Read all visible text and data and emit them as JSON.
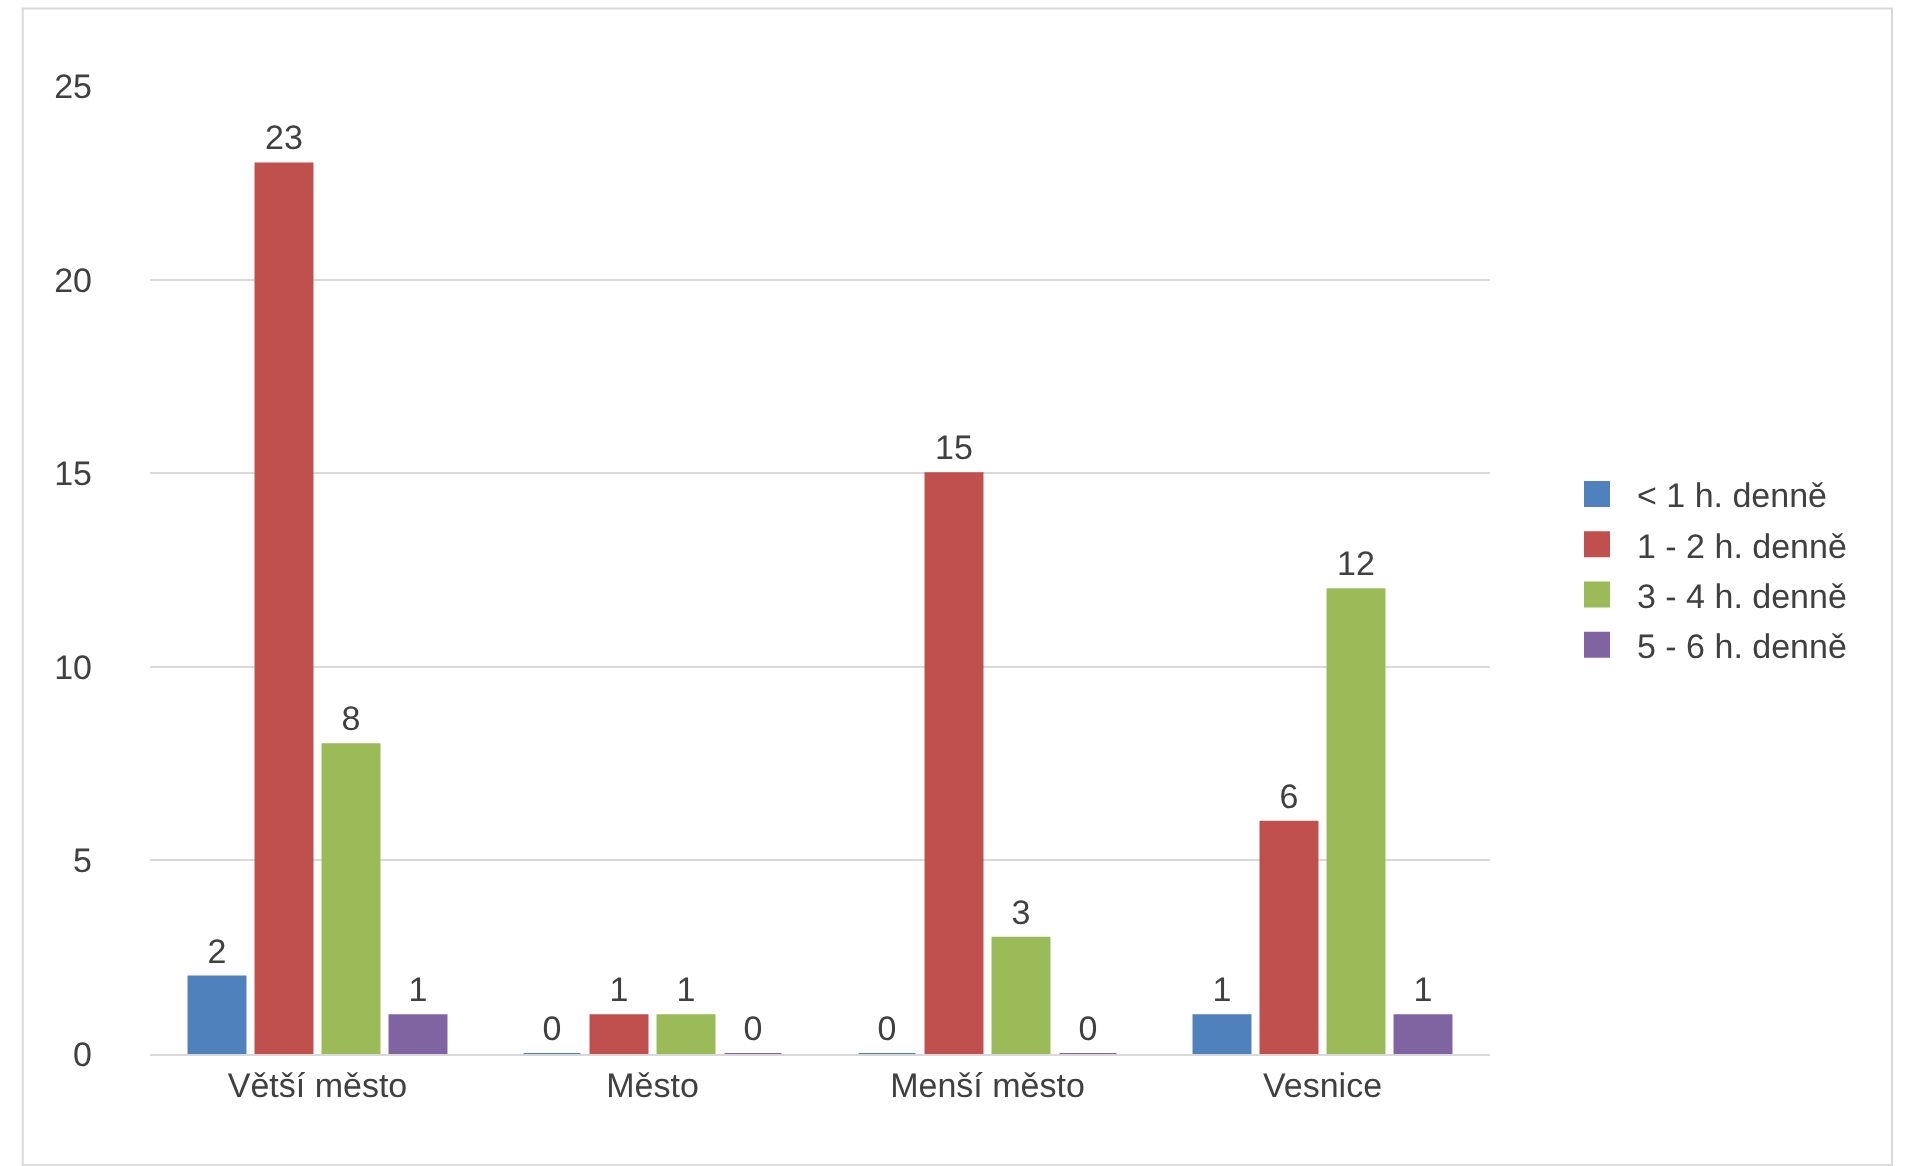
{
  "chart_data": {
    "type": "bar",
    "categories": [
      "Větší město",
      "Město",
      "Menší město",
      "Vesnice"
    ],
    "series": [
      {
        "name": "< 1 h. denně",
        "color": "#4f81bd",
        "values": [
          2,
          0,
          0,
          1
        ]
      },
      {
        "name": "1 - 2 h. denně",
        "color": "#c0504d",
        "values": [
          23,
          1,
          15,
          6
        ]
      },
      {
        "name": "3 - 4 h. denně",
        "color": "#9bbb59",
        "values": [
          8,
          1,
          3,
          12
        ]
      },
      {
        "name": "5 - 6 h. denně",
        "color": "#8064a2",
        "values": [
          1,
          0,
          0,
          1
        ]
      }
    ],
    "ylim": [
      0,
      25
    ],
    "yticks": [
      0,
      5,
      10,
      15,
      20,
      25
    ],
    "grid": "y",
    "legend": "right",
    "data_labels": true
  }
}
